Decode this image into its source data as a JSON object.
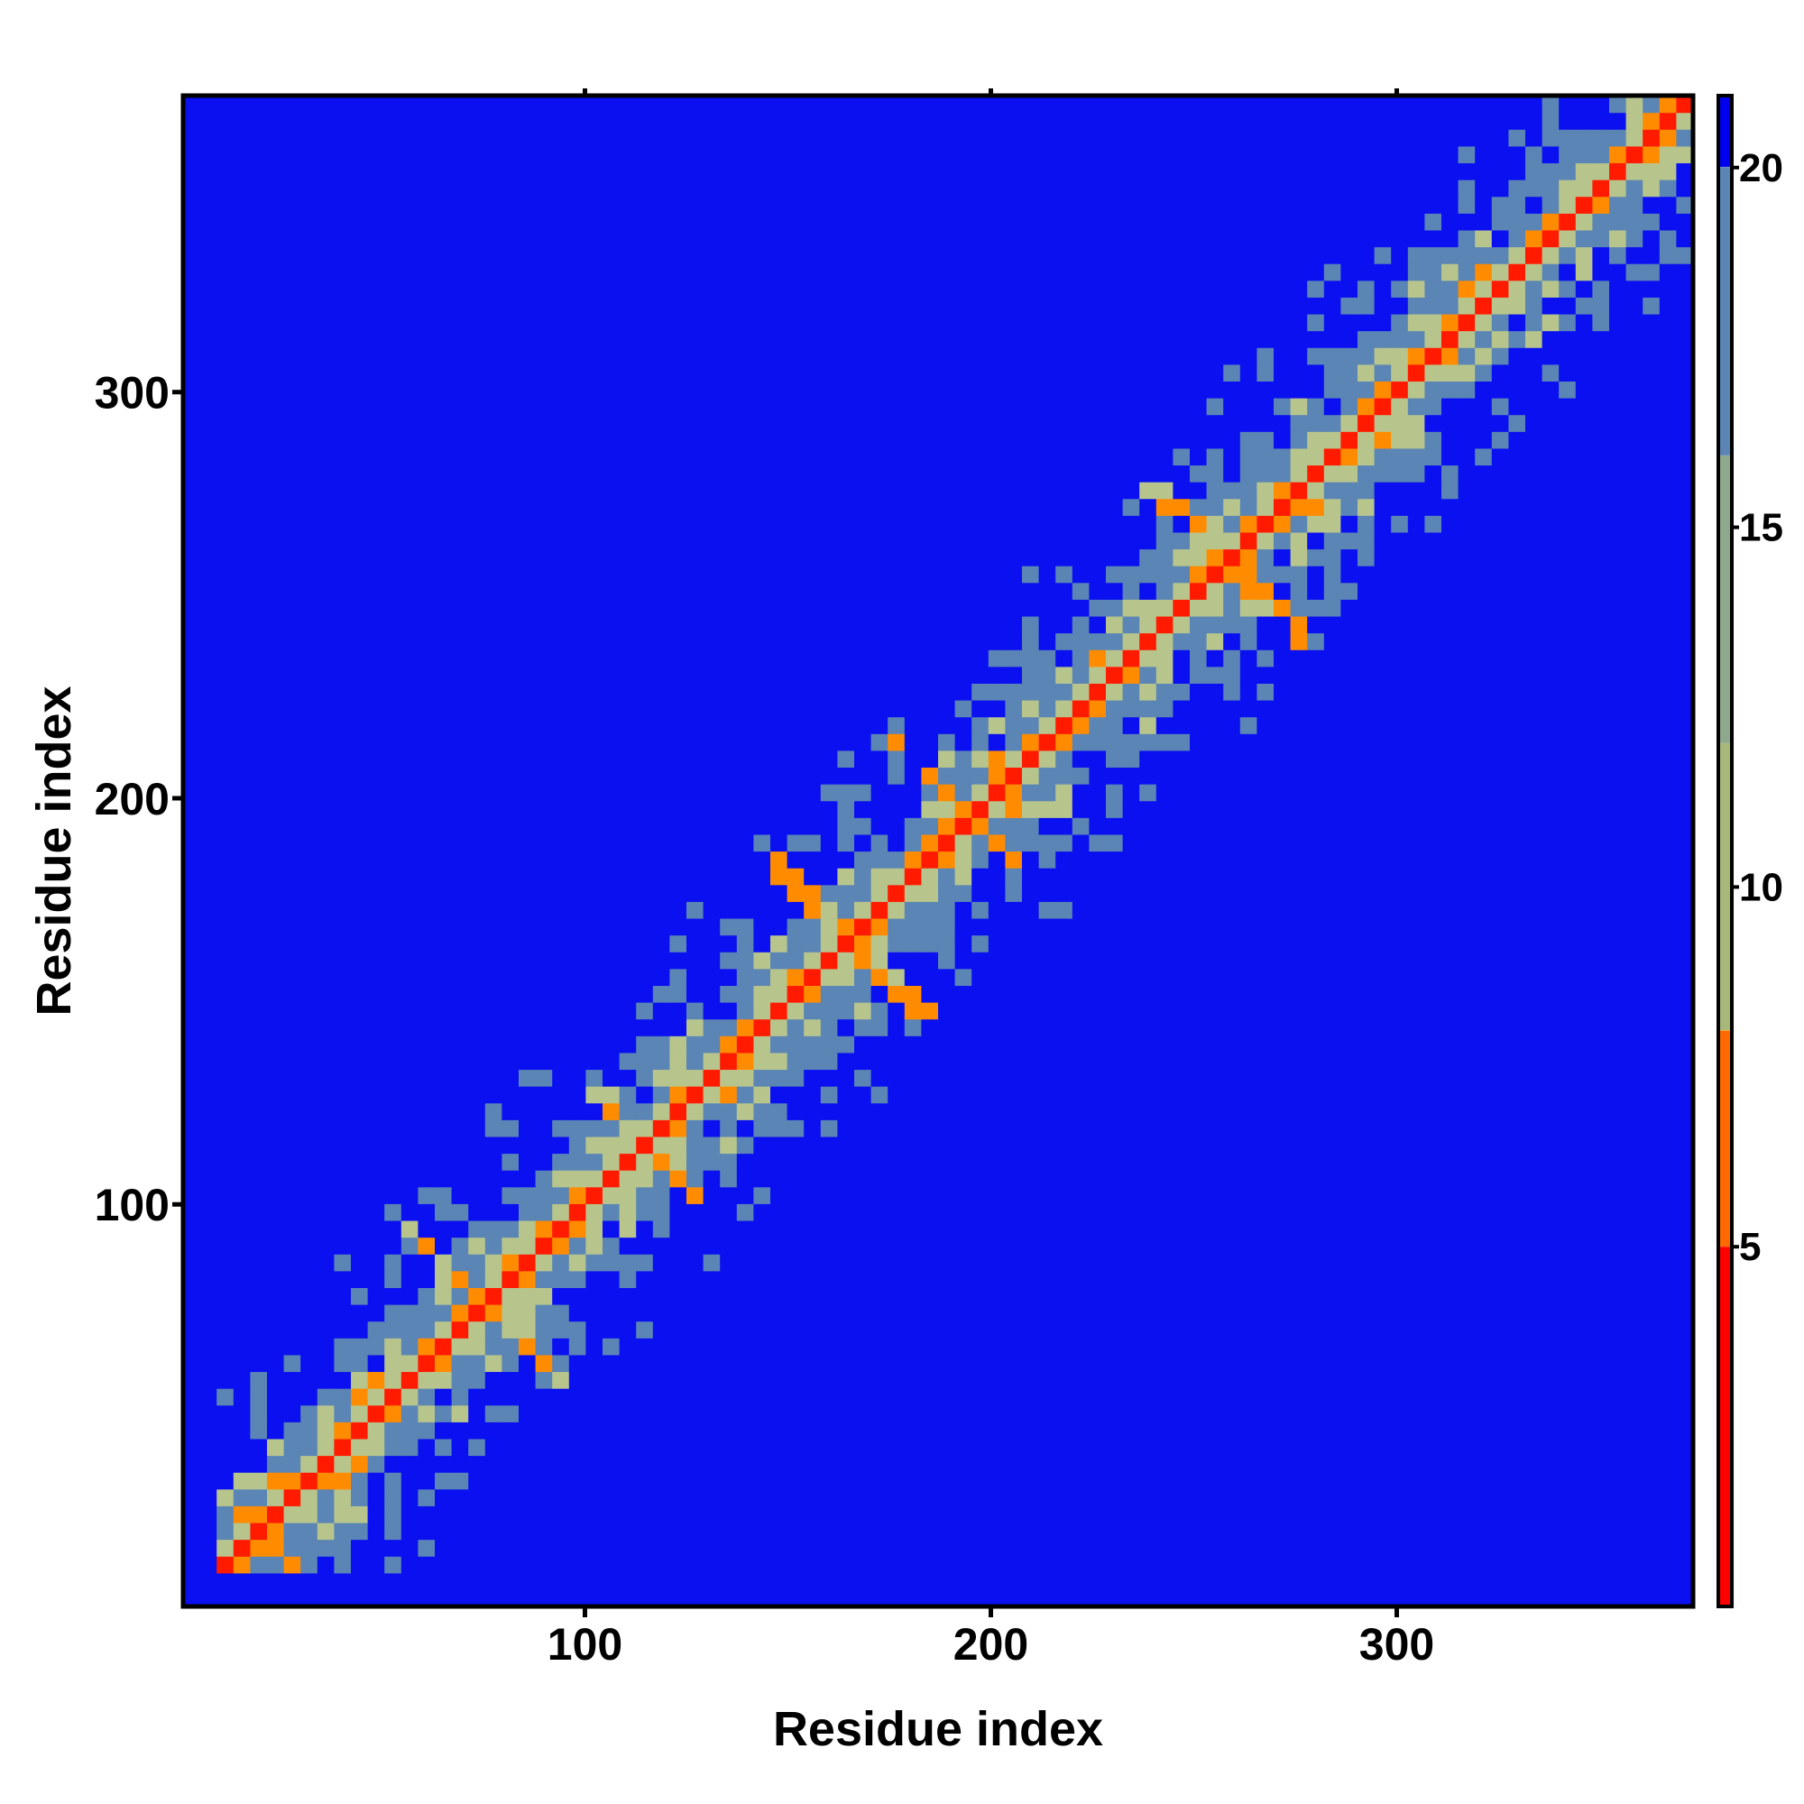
{
  "chart_data": {
    "type": "heatmap",
    "title": "",
    "xlabel": "Residue index",
    "ylabel": "Residue index",
    "xlim": [
      1,
      373
    ],
    "ylim": [
      1,
      373
    ],
    "x_ticks": [
      100,
      200,
      300
    ],
    "y_ticks": [
      100,
      200,
      300
    ],
    "x_tick_labels": [
      "100",
      "200",
      "300"
    ],
    "y_tick_labels": [
      "100",
      "200",
      "300"
    ],
    "colorbar": {
      "range": [
        0,
        21
      ],
      "ticks": [
        5,
        10,
        15,
        20
      ],
      "tick_labels": [
        "5",
        "10",
        "15",
        "20"
      ],
      "colors": [
        {
          "value": 0,
          "color": "#ff0000"
        },
        {
          "value": 5,
          "color": "#ff6a00"
        },
        {
          "value": 8,
          "color": "#ff9900"
        },
        {
          "value": 8.01,
          "color": "#a8b87a"
        },
        {
          "value": 12,
          "color": "#8ea88e"
        },
        {
          "value": 16,
          "color": "#5b85b5"
        },
        {
          "value": 20,
          "color": "#5b85b5"
        },
        {
          "value": 20.01,
          "color": "#0000ee"
        },
        {
          "value": 21,
          "color": "#0000ee"
        }
      ]
    },
    "colors": {
      "contact": "#ff1a00",
      "near": "#ff8c00",
      "mid": "#b7c58c",
      "far": "#5b85b5",
      "very_far": "#0a10f0"
    },
    "grid": false,
    "legend": "colorbar-right",
    "value_description": "pairwise distance map (symmetric about diagonal)",
    "features": {
      "diagonal_contact_band": true,
      "antiparallel_contacts_at": [
        [
          20,
          20
        ],
        [
          195,
          195
        ],
        [
          75,
          75
        ],
        [
          258,
          258
        ],
        [
          165,
          165
        ],
        [
          115,
          115
        ]
      ],
      "far_regions": [
        {
          "x": [
            1,
            10
          ],
          "y": [
            1,
            373
          ],
          "value": 21
        },
        {
          "x": [
            1,
            373
          ],
          "y": [
            1,
            10
          ],
          "value": 21
        },
        {
          "x": [
            25,
            85
          ],
          "y": [
            150,
            330
          ],
          "value": 21
        },
        {
          "x": [
            135,
            373
          ],
          "y": [
            30,
            85
          ],
          "value": 21
        }
      ]
    }
  }
}
